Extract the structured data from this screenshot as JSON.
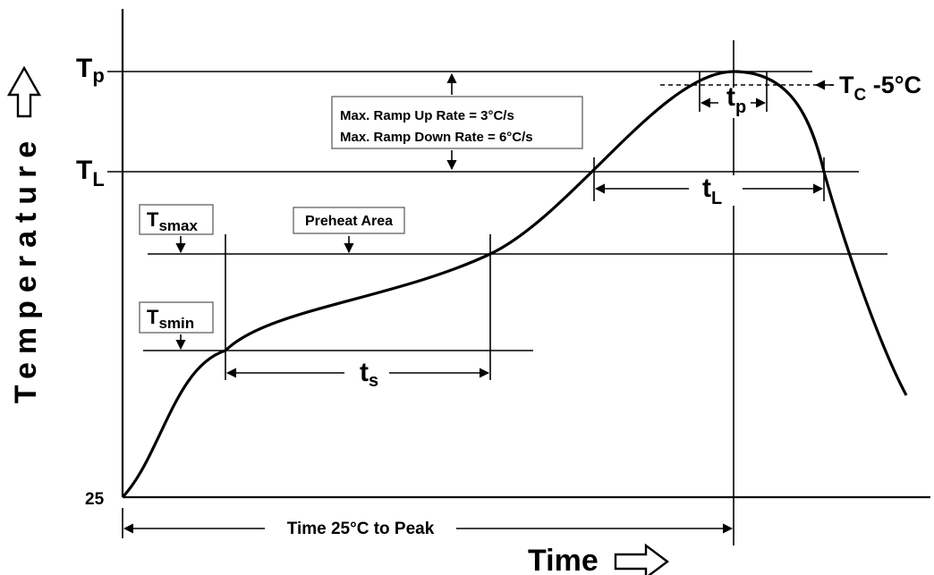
{
  "axes": {
    "y_title": "Temperature",
    "x_title": "Time",
    "y_arrow_icon": "up-arrow-outline-icon",
    "x_arrow_icon": "right-arrow-outline-icon",
    "origin_label": "25"
  },
  "levels": {
    "tp": {
      "main": "T",
      "sub": "p"
    },
    "tl": {
      "main": "T",
      "sub": "L"
    },
    "tc": {
      "main": "T",
      "sub": "C",
      "suffix": " -5°C"
    }
  },
  "boxes": {
    "tsmax": {
      "main": "T",
      "sub": "smax"
    },
    "tsmin": {
      "main": "T",
      "sub": "smin"
    },
    "preheat": "Preheat Area",
    "ramp_up": "Max. Ramp Up Rate = 3°C/s",
    "ramp_down": "Max. Ramp Down Rate = 6°C/s"
  },
  "intervals": {
    "ts": {
      "main": "t",
      "sub": "s"
    },
    "tl": {
      "main": "t",
      "sub": "L"
    },
    "tp": {
      "main": "t",
      "sub": "p"
    },
    "time_to_peak": "Time 25°C to Peak"
  }
}
